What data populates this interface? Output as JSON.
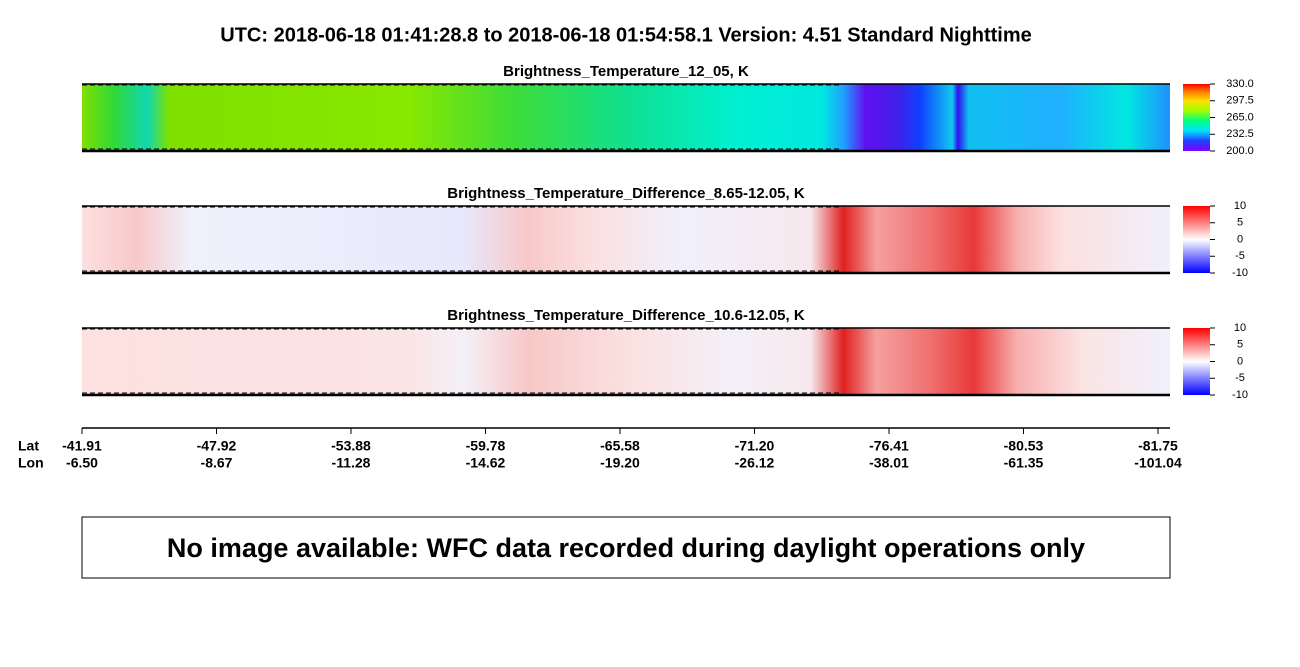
{
  "title": "UTC:  2018-06-18   01:41:28.8  to  2018-06-18   01:54:58.1    Version: 4.51  Standard Nighttime",
  "panels": [
    {
      "title": "Brightness_Temperature_12_05, K",
      "colorbar_ticks": [
        {
          "value": 330,
          "label": "330.0"
        },
        {
          "value": 297.5,
          "label": "297.5"
        },
        {
          "value": 265,
          "label": "265.0"
        },
        {
          "value": 232.5,
          "label": "232.5"
        },
        {
          "value": 200,
          "label": "200.0"
        }
      ]
    },
    {
      "title": "Brightness_Temperature_Difference_8.65-12.05, K",
      "colorbar_ticks": [
        10,
        5,
        0,
        -5,
        -10
      ]
    },
    {
      "title": "Brightness_Temperature_Difference_10.6-12.05, K",
      "colorbar_ticks": [
        10,
        5,
        0,
        -5,
        -10
      ]
    }
  ],
  "axis": {
    "lat_label": "Lat",
    "lon_label": "Lon",
    "lat": [
      "-41.91",
      "-47.92",
      "-53.88",
      "-59.78",
      "-65.58",
      "-71.20",
      "-76.41",
      "-80.53",
      "-81.75"
    ],
    "lon": [
      "-6.50",
      "-8.67",
      "-11.28",
      "-14.62",
      "-19.20",
      "-26.12",
      "-38.01",
      "-61.35",
      "-101.04"
    ]
  },
  "message": "No image available: WFC data recorded during daylight operations only"
}
